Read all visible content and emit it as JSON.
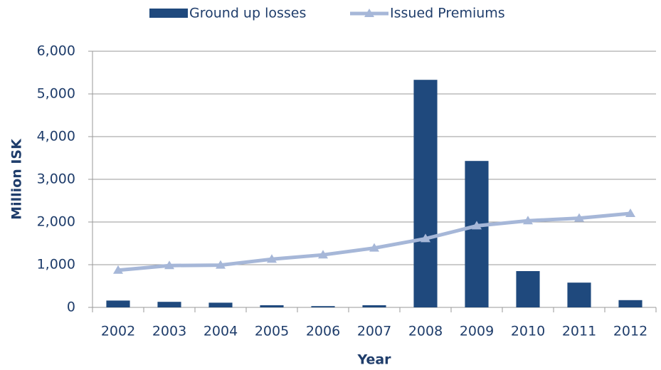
{
  "chart_data": {
    "type": "combo",
    "x_label": "Year",
    "y_label": "Million ISK",
    "categories": [
      "2002",
      "2003",
      "2004",
      "2005",
      "2006",
      "2007",
      "2008",
      "2009",
      "2010",
      "2011",
      "2012"
    ],
    "series": [
      {
        "name": "Ground up losses",
        "type": "bar",
        "color": "#1f497d",
        "values": [
          160,
          130,
          110,
          50,
          30,
          50,
          5330,
          3430,
          850,
          580,
          170
        ]
      },
      {
        "name": "Issued Premiums",
        "type": "line",
        "color": "#a6b7d8",
        "values": [
          870,
          980,
          990,
          1130,
          1230,
          1390,
          1610,
          1910,
          2030,
          2090,
          2200
        ]
      }
    ],
    "ylim": [
      0,
      6000
    ],
    "yticks": [
      0,
      {
        "value": 1000,
        "label": "1,000"
      },
      {
        "value": 2000,
        "label": "2,000"
      },
      {
        "value": 3000,
        "label": "3,000"
      },
      {
        "value": 4000,
        "label": "4,000"
      },
      {
        "value": 5000,
        "label": "5,000"
      },
      {
        "value": 6000,
        "label": "6,000"
      }
    ],
    "grid": true,
    "legend": "top"
  }
}
